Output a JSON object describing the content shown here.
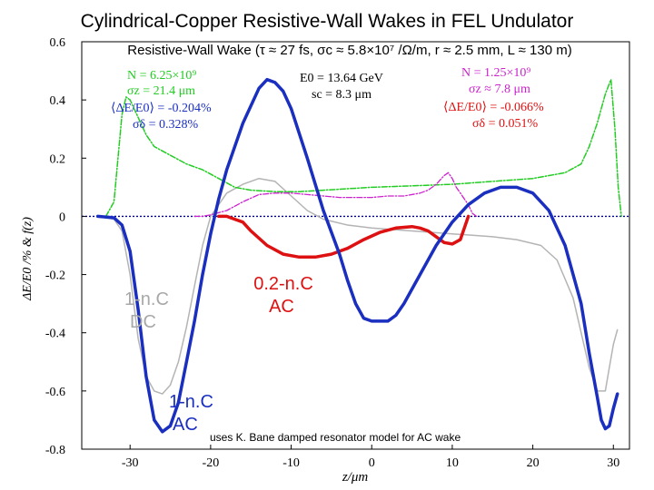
{
  "page": {
    "title": "Cylindrical-Copper Resistive-Wall Wakes in FEL Undulator"
  },
  "colors": {
    "blue_ac_1nc": "#1a2fbf",
    "red_ac_02nc": "#dd1111",
    "gray_dc_1nc": "#b4b4b4",
    "green": "#22cc22",
    "magenta": "#cc22cc",
    "zero_line": "#00008b"
  },
  "chart_data": {
    "type": "line",
    "title": "Resistive-Wall Wake (τ ≈ 27 fs, σc ≈ 5.8×10⁷ /Ω/m, r ≈ 2.5 mm, L ≈ 130 m)",
    "xlabel": "z/μm",
    "ylabel": "ΔE/E0 /%  &  f(z)",
    "xlim": [
      -36,
      32
    ],
    "ylim": [
      -0.8,
      0.6
    ],
    "xticks": [
      -30,
      -20,
      -10,
      0,
      10,
      20,
      30
    ],
    "yticks": [
      -0.8,
      -0.6,
      -0.4,
      -0.2,
      0,
      0.2,
      0.4,
      0.6
    ],
    "xtick_labels": [
      "-30",
      "-20",
      "-10",
      "0",
      "10",
      "20",
      "30"
    ],
    "ytick_labels": [
      "-0.8",
      "-0.6",
      "-0.4",
      "-0.2",
      "0",
      "0.2",
      "0.4",
      "0.6"
    ],
    "grid": false,
    "series": [
      {
        "label_lines": [
          "1-n.C",
          "AC"
        ],
        "color": "#1a2fbf",
        "style": "solid",
        "points": [
          [
            -34,
            0
          ],
          [
            -32,
            -0.005
          ],
          [
            -31,
            -0.03
          ],
          [
            -30,
            -0.12
          ],
          [
            -29,
            -0.32
          ],
          [
            -28,
            -0.55
          ],
          [
            -27,
            -0.7
          ],
          [
            -26,
            -0.74
          ],
          [
            -25,
            -0.72
          ],
          [
            -24,
            -0.64
          ],
          [
            -23,
            -0.5
          ],
          [
            -22,
            -0.36
          ],
          [
            -21,
            -0.2
          ],
          [
            -20,
            -0.06
          ],
          [
            -19,
            0.06
          ],
          [
            -18,
            0.16
          ],
          [
            -16,
            0.32
          ],
          [
            -14,
            0.44
          ],
          [
            -13,
            0.47
          ],
          [
            -12,
            0.46
          ],
          [
            -11,
            0.43
          ],
          [
            -10,
            0.37
          ],
          [
            -8,
            0.2
          ],
          [
            -6,
            0.02
          ],
          [
            -4,
            -0.13
          ],
          [
            -3,
            -0.22
          ],
          [
            -2,
            -0.3
          ],
          [
            -1,
            -0.35
          ],
          [
            0,
            -0.36
          ],
          [
            2,
            -0.36
          ],
          [
            3,
            -0.34
          ],
          [
            4,
            -0.3
          ],
          [
            6,
            -0.2
          ],
          [
            8,
            -0.1
          ],
          [
            10,
            -0.02
          ],
          [
            12,
            0.04
          ],
          [
            14,
            0.08
          ],
          [
            16,
            0.1
          ],
          [
            18,
            0.1
          ],
          [
            20,
            0.08
          ],
          [
            22,
            0.02
          ],
          [
            24,
            -0.1
          ],
          [
            26,
            -0.3
          ],
          [
            27,
            -0.47
          ],
          [
            28,
            -0.62
          ],
          [
            28.5,
            -0.7
          ],
          [
            29,
            -0.73
          ],
          [
            29.5,
            -0.72
          ],
          [
            30,
            -0.66
          ],
          [
            30.5,
            -0.61
          ]
        ]
      },
      {
        "label_lines": [
          "0.2-n.C",
          "AC"
        ],
        "color": "#dd1111",
        "style": "solid",
        "points": [
          [
            -19,
            0
          ],
          [
            -18,
            0
          ],
          [
            -17,
            -0.01
          ],
          [
            -16,
            -0.02
          ],
          [
            -15,
            -0.05
          ],
          [
            -13,
            -0.1
          ],
          [
            -11,
            -0.13
          ],
          [
            -9,
            -0.14
          ],
          [
            -7,
            -0.14
          ],
          [
            -5,
            -0.13
          ],
          [
            -3,
            -0.11
          ],
          [
            -1,
            -0.08
          ],
          [
            1,
            -0.055
          ],
          [
            3,
            -0.04
          ],
          [
            5,
            -0.035
          ],
          [
            6,
            -0.04
          ],
          [
            7,
            -0.05
          ],
          [
            8,
            -0.07
          ],
          [
            9,
            -0.09
          ],
          [
            10,
            -0.095
          ],
          [
            11,
            -0.08
          ],
          [
            11.5,
            -0.04
          ],
          [
            12,
            0
          ]
        ]
      },
      {
        "label_lines": [
          "1-n.C",
          "DC"
        ],
        "color": "#b4b4b4",
        "style": "solid",
        "points": [
          [
            -34,
            0
          ],
          [
            -32,
            -0.01
          ],
          [
            -31,
            -0.05
          ],
          [
            -30,
            -0.2
          ],
          [
            -29,
            -0.42
          ],
          [
            -28,
            -0.55
          ],
          [
            -27,
            -0.6
          ],
          [
            -26,
            -0.61
          ],
          [
            -25,
            -0.58
          ],
          [
            -24,
            -0.5
          ],
          [
            -23,
            -0.38
          ],
          [
            -22,
            -0.24
          ],
          [
            -21,
            -0.1
          ],
          [
            -20,
            0
          ],
          [
            -18,
            0.08
          ],
          [
            -16,
            0.11
          ],
          [
            -14,
            0.13
          ],
          [
            -12,
            0.12
          ],
          [
            -10,
            0.07
          ],
          [
            -8,
            0.02
          ],
          [
            -6,
            -0.01
          ],
          [
            -3,
            -0.03
          ],
          [
            0,
            -0.04
          ],
          [
            5,
            -0.05
          ],
          [
            10,
            -0.06
          ],
          [
            15,
            -0.07
          ],
          [
            18,
            -0.08
          ],
          [
            21,
            -0.1
          ],
          [
            23,
            -0.15
          ],
          [
            25,
            -0.28
          ],
          [
            26,
            -0.4
          ],
          [
            27,
            -0.52
          ],
          [
            28,
            -0.6
          ],
          [
            29,
            -0.6
          ],
          [
            29.5,
            -0.52
          ],
          [
            30,
            -0.44
          ],
          [
            30.5,
            -0.39
          ]
        ]
      },
      {
        "label_lines": [],
        "color": "#22cc22",
        "style": "dashdot",
        "points": [
          [
            -33,
            0
          ],
          [
            -32,
            0.05
          ],
          [
            -31.5,
            0.2
          ],
          [
            -31,
            0.35
          ],
          [
            -30.5,
            0.41
          ],
          [
            -30,
            0.4
          ],
          [
            -29,
            0.34
          ],
          [
            -28,
            0.28
          ],
          [
            -27,
            0.24
          ],
          [
            -25,
            0.21
          ],
          [
            -23,
            0.18
          ],
          [
            -21,
            0.16
          ],
          [
            -19,
            0.13
          ],
          [
            -17,
            0.1
          ],
          [
            -15,
            0.09
          ],
          [
            -12,
            0.085
          ],
          [
            -9,
            0.085
          ],
          [
            -6,
            0.09
          ],
          [
            -3,
            0.095
          ],
          [
            0,
            0.1
          ],
          [
            5,
            0.105
          ],
          [
            10,
            0.11
          ],
          [
            15,
            0.12
          ],
          [
            20,
            0.13
          ],
          [
            24,
            0.15
          ],
          [
            26,
            0.18
          ],
          [
            27,
            0.24
          ],
          [
            28,
            0.32
          ],
          [
            29,
            0.42
          ],
          [
            29.7,
            0.47
          ],
          [
            30.2,
            0.3
          ],
          [
            30.6,
            0.1
          ],
          [
            31,
            0
          ]
        ]
      },
      {
        "label_lines": [],
        "color": "#cc22cc",
        "style": "dashdot",
        "points": [
          [
            -22,
            0
          ],
          [
            -21,
            0
          ],
          [
            -20,
            0.005
          ],
          [
            -18,
            0.02
          ],
          [
            -16,
            0.05
          ],
          [
            -14,
            0.075
          ],
          [
            -12,
            0.08
          ],
          [
            -10,
            0.08
          ],
          [
            -8,
            0.075
          ],
          [
            -6,
            0.07
          ],
          [
            -4,
            0.065
          ],
          [
            -2,
            0.065
          ],
          [
            0,
            0.065
          ],
          [
            2,
            0.07
          ],
          [
            4,
            0.07
          ],
          [
            6,
            0.08
          ],
          [
            7,
            0.09
          ],
          [
            8,
            0.11
          ],
          [
            9,
            0.14
          ],
          [
            9.5,
            0.15
          ],
          [
            10,
            0.13
          ],
          [
            10.5,
            0.1
          ],
          [
            11,
            0.08
          ],
          [
            12,
            0.04
          ],
          [
            12.5,
            0.01
          ],
          [
            13,
            0
          ]
        ]
      }
    ],
    "annotations": {
      "green_box": [
        "N = 6.25×10⁹",
        "σz = 21.4 μm",
        "⟨ΔE/E0⟩ = -0.204%",
        "σδ = 0.328%"
      ],
      "center_box": [
        "E0 = 13.64 GeV",
        "sc = 8.3 μm"
      ],
      "magenta_box": [
        "N = 1.25×10⁹",
        "σz ≈ 7.8 μm",
        "⟨ΔE/E0⟩ = -0.066%",
        "σδ = 0.051%"
      ],
      "footnote": "uses K. Bane damped resonator model for AC wake"
    }
  }
}
